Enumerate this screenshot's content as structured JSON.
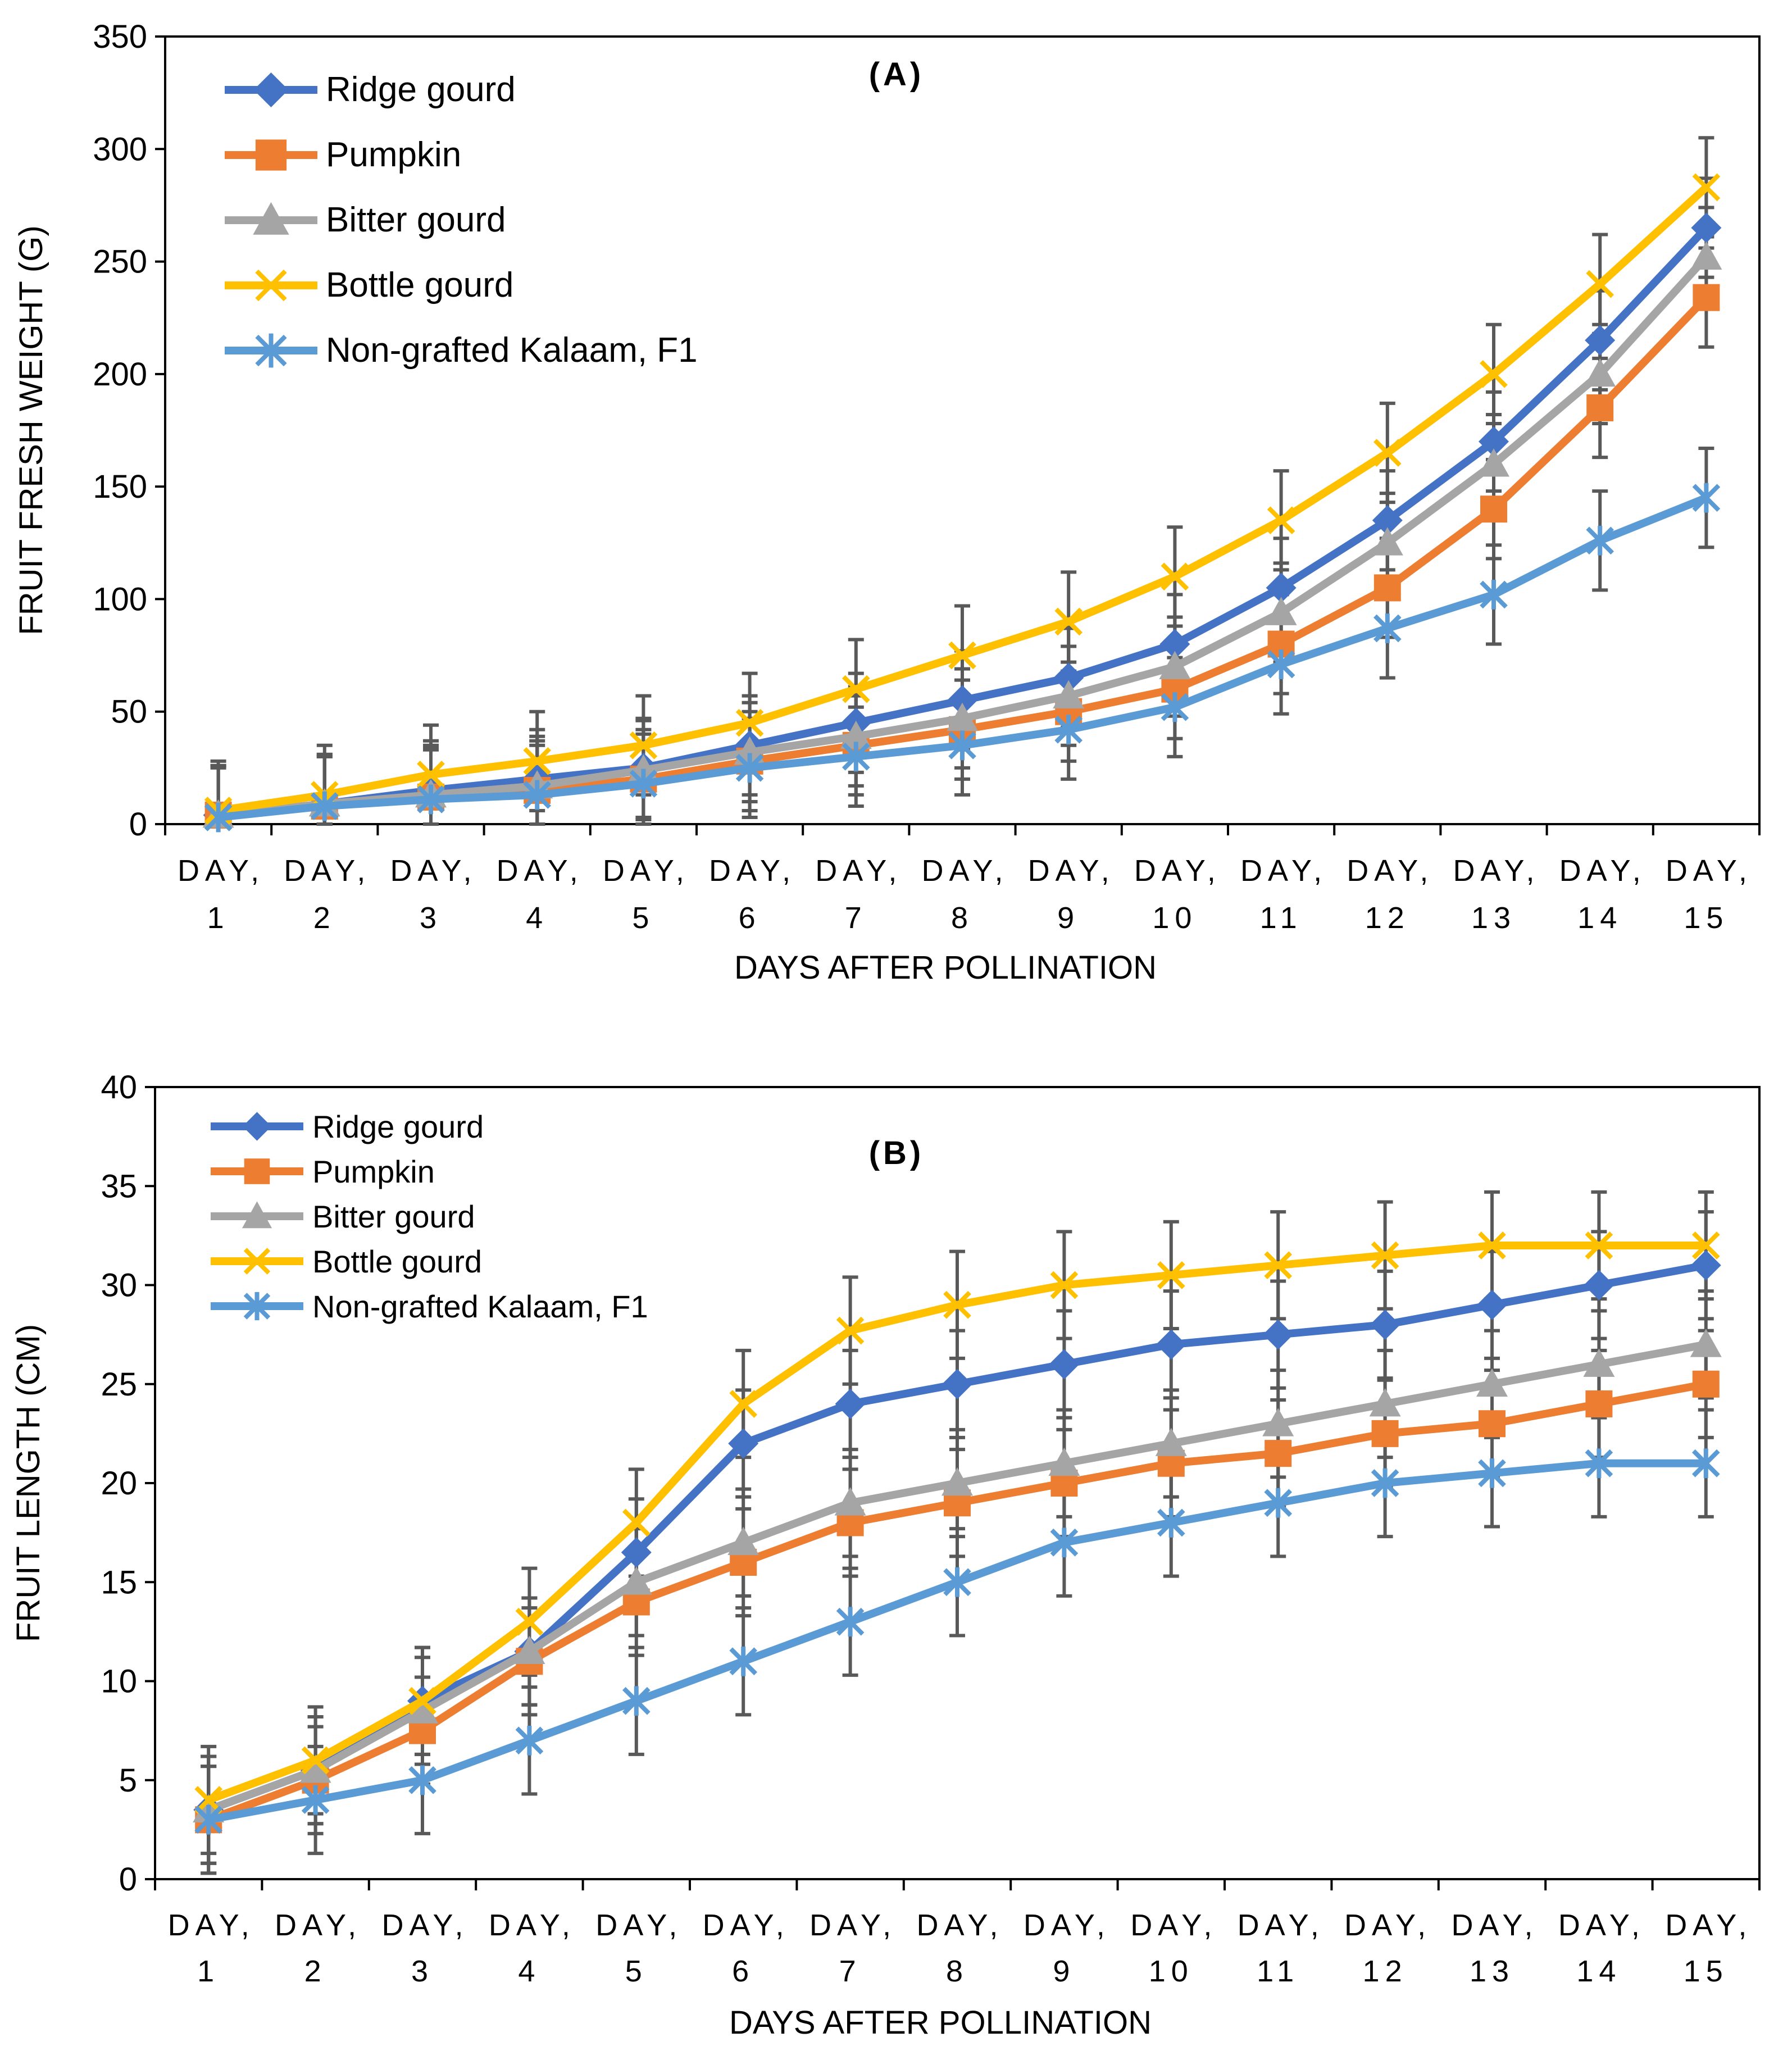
{
  "chart_data": [
    {
      "type": "line",
      "title": "(A)",
      "xlabel": "DAYS AFTER POLLINATION",
      "ylabel": "FRUIT FRESH WEIGHT (G)",
      "ylim": [
        0,
        350
      ],
      "yticks": [
        "0",
        "50",
        "100",
        "150",
        "200",
        "250",
        "300",
        "350"
      ],
      "categories": [
        [
          "DAY,",
          "1"
        ],
        [
          "DAY,",
          "2"
        ],
        [
          "DAY,",
          "3"
        ],
        [
          "DAY,",
          "4"
        ],
        [
          "DAY,",
          "5"
        ],
        [
          "DAY,",
          "6"
        ],
        [
          "DAY,",
          "7"
        ],
        [
          "DAY,",
          "8"
        ],
        [
          "DAY,",
          "9"
        ],
        [
          "DAY,",
          "10"
        ],
        [
          "DAY,",
          "11"
        ],
        [
          "DAY,",
          "12"
        ],
        [
          "DAY,",
          "13"
        ],
        [
          "DAY,",
          "14"
        ],
        [
          "DAY,",
          "15"
        ]
      ],
      "legend_position": "top-left",
      "error_bar": 22,
      "series": [
        {
          "name": "Ridge gourd",
          "color": "#4472C4",
          "marker": "diamond",
          "values": [
            4,
            9,
            15,
            20,
            25,
            35,
            45,
            55,
            65,
            80,
            105,
            135,
            170,
            215,
            265
          ]
        },
        {
          "name": "Pumpkin",
          "color": "#ED7D31",
          "marker": "square",
          "values": [
            4,
            8,
            12,
            15,
            20,
            28,
            35,
            42,
            50,
            60,
            80,
            105,
            140,
            185,
            234
          ]
        },
        {
          "name": "Bitter gourd",
          "color": "#A5A5A5",
          "marker": "triangle",
          "values": [
            4,
            9,
            13,
            17,
            24,
            32,
            39,
            47,
            57,
            70,
            94,
            125,
            160,
            200,
            252
          ]
        },
        {
          "name": "Bottle gourd",
          "color": "#FFC000",
          "marker": "x",
          "values": [
            6,
            13,
            22,
            28,
            35,
            45,
            60,
            75,
            90,
            110,
            135,
            165,
            200,
            240,
            283
          ]
        },
        {
          "name": "Non-grafted Kalaam, F1",
          "color": "#5B9BD5",
          "marker": "asterisk",
          "values": [
            3,
            8,
            11,
            13,
            18,
            25,
            30,
            35,
            42,
            52,
            71,
            87,
            102,
            126,
            145
          ]
        }
      ]
    },
    {
      "type": "line",
      "title": "(B)",
      "xlabel": "DAYS AFTER POLLINATION",
      "ylabel": "FRUIT LENGTH (CM)",
      "ylim": [
        0,
        40
      ],
      "yticks": [
        "0",
        "5",
        "10",
        "15",
        "20",
        "25",
        "30",
        "35",
        "40"
      ],
      "categories": [
        [
          "DAY,",
          "1"
        ],
        [
          "DAY,",
          "2"
        ],
        [
          "DAY,",
          "3"
        ],
        [
          "DAY,",
          "4"
        ],
        [
          "DAY,",
          "5"
        ],
        [
          "DAY,",
          "6"
        ],
        [
          "DAY,",
          "7"
        ],
        [
          "DAY,",
          "8"
        ],
        [
          "DAY,",
          "9"
        ],
        [
          "DAY,",
          "10"
        ],
        [
          "DAY,",
          "11"
        ],
        [
          "DAY,",
          "12"
        ],
        [
          "DAY,",
          "13"
        ],
        [
          "DAY,",
          "14"
        ],
        [
          "DAY,",
          "15"
        ]
      ],
      "legend_position": "top-left",
      "error_bar": 2.7,
      "series": [
        {
          "name": "Ridge gourd",
          "color": "#4472C4",
          "marker": "diamond",
          "values": [
            3.5,
            5.5,
            9,
            11.5,
            16.5,
            22,
            24,
            25,
            26,
            27,
            27.5,
            28,
            29,
            30,
            31
          ]
        },
        {
          "name": "Pumpkin",
          "color": "#ED7D31",
          "marker": "square",
          "values": [
            3,
            5,
            7.5,
            11,
            14,
            16,
            18,
            19,
            20,
            21,
            21.5,
            22.5,
            23,
            24,
            25
          ]
        },
        {
          "name": "Bitter gourd",
          "color": "#A5A5A5",
          "marker": "triangle",
          "values": [
            3.5,
            5.5,
            8.5,
            11.5,
            15,
            17,
            19,
            20,
            21,
            22,
            23,
            24,
            25,
            26,
            27
          ]
        },
        {
          "name": "Bottle gourd",
          "color": "#FFC000",
          "marker": "x",
          "values": [
            4,
            6,
            9,
            13,
            18,
            24,
            27.7,
            29,
            30,
            30.5,
            31,
            31.5,
            32,
            32,
            32
          ]
        },
        {
          "name": "Non-grafted Kalaam, F1",
          "color": "#5B9BD5",
          "marker": "asterisk",
          "values": [
            3,
            4,
            5,
            7,
            9,
            11,
            13,
            15,
            17,
            18,
            19,
            20,
            20.5,
            21,
            21
          ]
        }
      ]
    }
  ]
}
